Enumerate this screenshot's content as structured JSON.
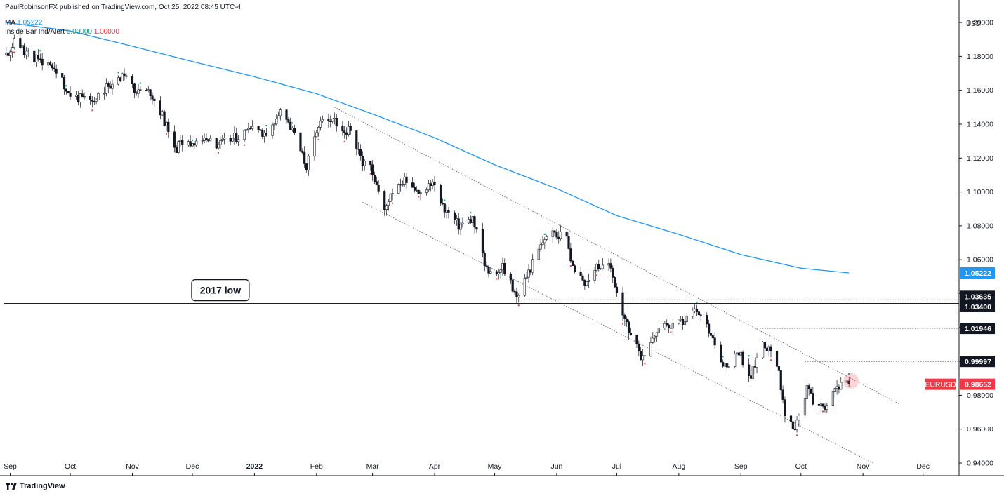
{
  "header": {
    "publisher": "PaulRobinsonFX published on TradingView.com, Oct 25, 2022 08:45 UTC-4",
    "ma_label": "MA",
    "ma_value": "1.05222",
    "indicator_label": "Inside Bar Ind/Alert",
    "indicator_value_1": "0.00000",
    "indicator_value_2": "1.00000"
  },
  "footer": {
    "brand": "TradingView"
  },
  "colors": {
    "up": "#089981",
    "down": "#131722",
    "ma": "#2196f3",
    "axis": "#131722",
    "symbol_badge": "#f23645",
    "marker_up": "#089981",
    "marker_down": "#f23645"
  },
  "chart_data": {
    "type": "candlestick",
    "symbol": "EURUSD",
    "currency": "USD",
    "last_price": "0.98652",
    "ylim": [
      0.94,
      1.205
    ],
    "y_ticks": [
      "0.94000",
      "0.96000",
      "0.98000",
      "1.00000",
      "1.02000",
      "1.04000",
      "1.06000",
      "1.08000",
      "1.10000",
      "1.12000",
      "1.14000",
      "1.16000",
      "1.18000",
      "1.20000"
    ],
    "x_ticks": [
      {
        "label": "Sep",
        "date": "2021-09-01"
      },
      {
        "label": "Oct",
        "date": "2021-10-01"
      },
      {
        "label": "Nov",
        "date": "2021-11-01"
      },
      {
        "label": "Dec",
        "date": "2021-12-01"
      },
      {
        "label": "2022",
        "date": "2022-01-01",
        "bold": true
      },
      {
        "label": "Feb",
        "date": "2022-02-01"
      },
      {
        "label": "Mar",
        "date": "2022-03-01"
      },
      {
        "label": "Apr",
        "date": "2022-04-01"
      },
      {
        "label": "May",
        "date": "2022-05-01"
      },
      {
        "label": "Jun",
        "date": "2022-06-01"
      },
      {
        "label": "Jul",
        "date": "2022-07-01"
      },
      {
        "label": "Aug",
        "date": "2022-08-01"
      },
      {
        "label": "Sep",
        "date": "2022-09-01"
      },
      {
        "label": "Oct",
        "date": "2022-10-01"
      },
      {
        "label": "Nov",
        "date": "2022-11-01"
      },
      {
        "label": "Dec",
        "date": "2022-12-01"
      }
    ],
    "price_path": [
      [
        "2021-08-30",
        1.181
      ],
      [
        "2021-09-03",
        1.188
      ],
      [
        "2021-09-10",
        1.182
      ],
      [
        "2021-09-17",
        1.176
      ],
      [
        "2021-09-24",
        1.172
      ],
      [
        "2021-09-30",
        1.158
      ],
      [
        "2021-10-06",
        1.155
      ],
      [
        "2021-10-12",
        1.153
      ],
      [
        "2021-10-20",
        1.163
      ],
      [
        "2021-10-28",
        1.168
      ],
      [
        "2021-11-03",
        1.158
      ],
      [
        "2021-11-10",
        1.159
      ],
      [
        "2021-11-16",
        1.145
      ],
      [
        "2021-11-22",
        1.125
      ],
      [
        "2021-11-26",
        1.129
      ],
      [
        "2021-12-03",
        1.13
      ],
      [
        "2021-12-15",
        1.128
      ],
      [
        "2021-12-24",
        1.133
      ],
      [
        "2021-12-31",
        1.137
      ],
      [
        "2022-01-07",
        1.135
      ],
      [
        "2022-01-14",
        1.146
      ],
      [
        "2022-01-21",
        1.133
      ],
      [
        "2022-01-27",
        1.115
      ],
      [
        "2022-02-04",
        1.145
      ],
      [
        "2022-02-10",
        1.142
      ],
      [
        "2022-02-17",
        1.136
      ],
      [
        "2022-02-24",
        1.118
      ],
      [
        "2022-03-01",
        1.112
      ],
      [
        "2022-03-07",
        1.088
      ],
      [
        "2022-03-10",
        1.1
      ],
      [
        "2022-03-17",
        1.106
      ],
      [
        "2022-03-24",
        1.099
      ],
      [
        "2022-03-31",
        1.107
      ],
      [
        "2022-04-06",
        1.09
      ],
      [
        "2022-04-13",
        1.08
      ],
      [
        "2022-04-20",
        1.084
      ],
      [
        "2022-04-28",
        1.05
      ],
      [
        "2022-05-05",
        1.055
      ],
      [
        "2022-05-12",
        1.038
      ],
      [
        "2022-05-19",
        1.055
      ],
      [
        "2022-05-26",
        1.073
      ],
      [
        "2022-05-31",
        1.077
      ],
      [
        "2022-06-06",
        1.072
      ],
      [
        "2022-06-10",
        1.052
      ],
      [
        "2022-06-15",
        1.045
      ],
      [
        "2022-06-20",
        1.055
      ],
      [
        "2022-06-27",
        1.057
      ],
      [
        "2022-07-01",
        1.042
      ],
      [
        "2022-07-07",
        1.017
      ],
      [
        "2022-07-14",
        1.001
      ],
      [
        "2022-07-21",
        1.02
      ],
      [
        "2022-07-28",
        1.019
      ],
      [
        "2022-08-04",
        1.024
      ],
      [
        "2022-08-10",
        1.03
      ],
      [
        "2022-08-17",
        1.016
      ],
      [
        "2022-08-24",
        0.997
      ],
      [
        "2022-08-31",
        1.005
      ],
      [
        "2022-09-06",
        0.991
      ],
      [
        "2022-09-12",
        1.012
      ],
      [
        "2022-09-19",
        1.0
      ],
      [
        "2022-09-23",
        0.97
      ],
      [
        "2022-09-28",
        0.96
      ],
      [
        "2022-10-04",
        0.985
      ],
      [
        "2022-10-07",
        0.977
      ],
      [
        "2022-10-13",
        0.974
      ],
      [
        "2022-10-18",
        0.985
      ],
      [
        "2022-10-25",
        0.9865
      ]
    ],
    "moving_average": {
      "name": "MA",
      "value": "1.05222",
      "points": [
        [
          "2021-08-30",
          1.2
        ],
        [
          "2021-10-01",
          1.195
        ],
        [
          "2021-11-01",
          1.186
        ],
        [
          "2021-12-01",
          1.177
        ],
        [
          "2022-01-01",
          1.168
        ],
        [
          "2022-02-01",
          1.158
        ],
        [
          "2022-03-01",
          1.146
        ],
        [
          "2022-04-01",
          1.132
        ],
        [
          "2022-05-01",
          1.116
        ],
        [
          "2022-06-01",
          1.102
        ],
        [
          "2022-07-01",
          1.086
        ],
        [
          "2022-08-01",
          1.075
        ],
        [
          "2022-09-01",
          1.063
        ],
        [
          "2022-10-01",
          1.055
        ],
        [
          "2022-10-25",
          1.05222
        ]
      ]
    },
    "trend_channel": {
      "upper": {
        "start": [
          "2022-02-10",
          1.15
        ],
        "end": [
          "2022-11-19",
          0.975
        ]
      },
      "lower": {
        "start": [
          "2022-02-24",
          1.094
        ],
        "end": [
          "2022-11-06",
          0.94
        ]
      }
    },
    "levels": [
      {
        "label": "1.03635",
        "value": 1.03635,
        "style": "dotted",
        "from": "2022-05-12",
        "badge": "dark"
      },
      {
        "label": "1.03400",
        "value": 1.034,
        "style": "solid",
        "badge": "dark",
        "annotation": "2017 low"
      },
      {
        "label": "1.01946",
        "value": 1.01946,
        "style": "dotted",
        "from": "2022-09-08",
        "badge": "dark"
      },
      {
        "label": "0.99997",
        "value": 0.99997,
        "style": "dotted",
        "from": "2022-10-03",
        "badge": "dark"
      },
      {
        "label": "0.98652",
        "value": 0.98652,
        "style": "current",
        "badge": "red",
        "symbol": "EURUSD"
      }
    ],
    "annotations": [
      {
        "text": "2017 low",
        "date": "2021-12-15",
        "value": 1.042
      }
    ],
    "highlight": {
      "date": "2022-10-26",
      "value": 0.9885
    }
  }
}
